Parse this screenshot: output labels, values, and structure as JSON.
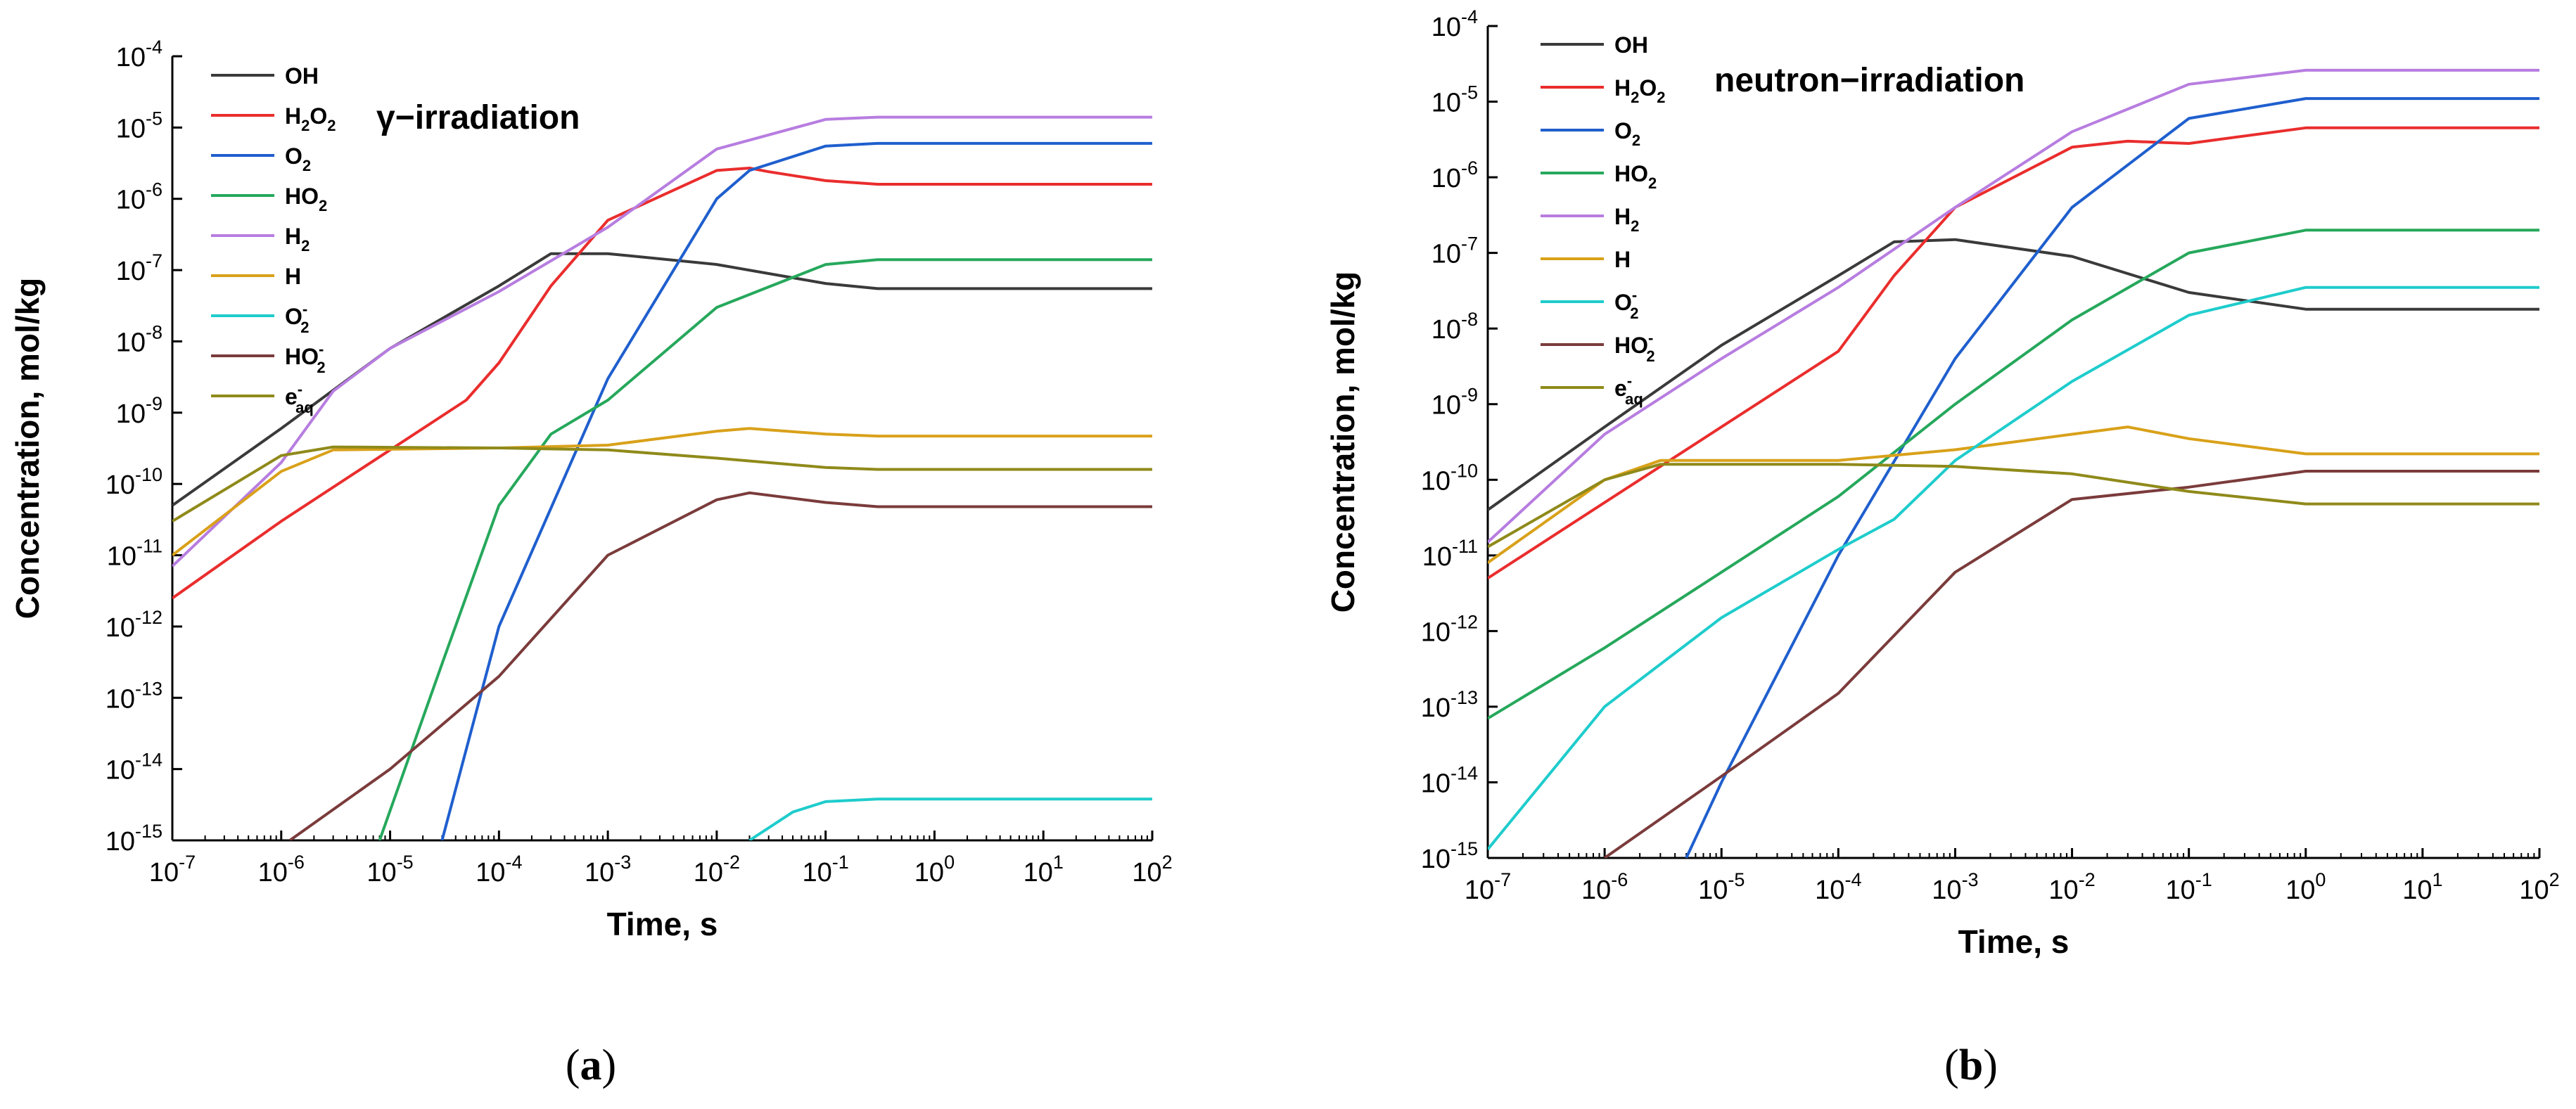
{
  "colors": {
    "OH": "#3a3a3a",
    "H2O2": "#ea2d2d",
    "O2": "#1f5fce",
    "HO2": "#26a85c",
    "H2": "#b77de0",
    "H": "#d9a11a",
    "O2minus": "#1fcccc",
    "HO2minus": "#7b3b3b",
    "eaq": "#8f8a1a"
  },
  "legend_labels": [
    {
      "key": "OH",
      "base": "OH",
      "sub": "",
      "sup": ""
    },
    {
      "key": "H2O2",
      "base": "H",
      "sub": "2",
      "base2": "O",
      "sub2": "2",
      "sup": ""
    },
    {
      "key": "O2",
      "base": "O",
      "sub": "2",
      "sup": ""
    },
    {
      "key": "HO2",
      "base": "HO",
      "sub": "2",
      "sup": ""
    },
    {
      "key": "H2",
      "base": "H",
      "sub": "2",
      "sup": ""
    },
    {
      "key": "H",
      "base": "H",
      "sub": "",
      "sup": ""
    },
    {
      "key": "O2minus",
      "base": "O",
      "sub": "2",
      "sup": "-"
    },
    {
      "key": "HO2minus",
      "base": "HO",
      "sub": "2",
      "sup": "-"
    },
    {
      "key": "eaq",
      "base": "e",
      "sub": "aq",
      "sup": "-"
    }
  ],
  "chart_data": [
    {
      "type": "line",
      "panel_caption": "(a)",
      "annotation": "γ−irradiation",
      "xlabel": "Time, s",
      "ylabel": "Concentration, mol/kg",
      "x_scale": "log",
      "y_scale": "log",
      "xlim": [
        1e-07,
        100
      ],
      "ylim": [
        1e-15,
        0.0001
      ],
      "x_tick_exponents": [
        -7,
        -6,
        -5,
        -4,
        -3,
        -2,
        -1,
        0,
        1,
        2
      ],
      "y_tick_exponents": [
        -4,
        -5,
        -6,
        -7,
        -8,
        -9,
        -10,
        -11,
        -12,
        -13,
        -14,
        -15
      ],
      "tick_base": "10",
      "legend_position": "top-left",
      "grid": false,
      "series": [
        {
          "key": "OH",
          "x": [
            1e-07,
            1e-06,
            1e-05,
            0.0001,
            0.0003,
            0.001,
            0.01,
            0.1,
            0.3,
            100
          ],
          "y": [
            5e-11,
            6e-10,
            8e-09,
            6e-08,
            1.7e-07,
            1.7e-07,
            1.2e-07,
            6.5e-08,
            5.5e-08,
            5.5e-08
          ]
        },
        {
          "key": "H2O2",
          "x": [
            1e-07,
            1e-06,
            1e-05,
            5e-05,
            0.0001,
            0.0003,
            0.001,
            0.01,
            0.02,
            0.03,
            0.1,
            0.3,
            100
          ],
          "y": [
            2.5e-12,
            3e-11,
            3e-10,
            1.5e-09,
            5e-09,
            6e-08,
            5e-07,
            2.5e-06,
            2.7e-06,
            2.4e-06,
            1.8e-06,
            1.6e-06,
            1.6e-06
          ]
        },
        {
          "key": "O2",
          "x": [
            3e-05,
            0.0001,
            0.001,
            0.01,
            0.02,
            0.1,
            0.3,
            100
          ],
          "y": [
            1e-15,
            1e-12,
            3e-09,
            1e-06,
            2.5e-06,
            5.5e-06,
            6e-06,
            6e-06
          ]
        },
        {
          "key": "HO2",
          "x": [
            8e-06,
            3e-05,
            0.0001,
            0.0003,
            0.001,
            0.01,
            0.1,
            0.3,
            100
          ],
          "y": [
            1e-15,
            3e-13,
            5e-11,
            5e-10,
            1.5e-09,
            3e-08,
            1.2e-07,
            1.4e-07,
            1.4e-07
          ]
        },
        {
          "key": "H2",
          "x": [
            1e-07,
            1e-06,
            3e-06,
            1e-05,
            0.0001,
            0.001,
            0.01,
            0.1,
            0.3,
            100
          ],
          "y": [
            7e-12,
            2e-10,
            2e-09,
            8e-09,
            5e-08,
            4e-07,
            5e-06,
            1.3e-05,
            1.4e-05,
            1.4e-05
          ]
        },
        {
          "key": "H",
          "x": [
            1e-07,
            1e-06,
            3e-06,
            0.0001,
            0.001,
            0.01,
            0.02,
            0.1,
            0.3,
            100
          ],
          "y": [
            1e-11,
            1.5e-10,
            3e-10,
            3.2e-10,
            3.5e-10,
            5.5e-10,
            6e-10,
            5e-10,
            4.7e-10,
            4.7e-10
          ]
        },
        {
          "key": "O2minus",
          "x": [
            0.02,
            0.05,
            0.1,
            0.3,
            100
          ],
          "y": [
            1e-15,
            2.5e-15,
            3.5e-15,
            3.8e-15,
            3.8e-15
          ]
        },
        {
          "key": "HO2minus",
          "x": [
            1.2e-06,
            1e-05,
            0.0001,
            0.001,
            0.01,
            0.02,
            0.1,
            0.3,
            100
          ],
          "y": [
            1e-15,
            1e-14,
            2e-13,
            1e-11,
            6e-11,
            7.5e-11,
            5.5e-11,
            4.8e-11,
            4.8e-11
          ]
        },
        {
          "key": "eaq",
          "x": [
            1e-07,
            1e-06,
            3e-06,
            0.0001,
            0.001,
            0.01,
            0.1,
            0.3,
            100
          ],
          "y": [
            3e-11,
            2.5e-10,
            3.3e-10,
            3.2e-10,
            3e-10,
            2.3e-10,
            1.7e-10,
            1.6e-10,
            1.6e-10
          ]
        }
      ]
    },
    {
      "type": "line",
      "panel_caption": "(b)",
      "annotation": "neutron−irradiation",
      "xlabel": "Time, s",
      "ylabel": "Concentration, mol/kg",
      "x_scale": "log",
      "y_scale": "log",
      "xlim": [
        1e-07,
        100
      ],
      "ylim": [
        1e-15,
        0.0001
      ],
      "x_tick_exponents": [
        -7,
        -6,
        -5,
        -4,
        -3,
        -2,
        -1,
        0,
        1,
        2
      ],
      "y_tick_exponents": [
        -4,
        -5,
        -6,
        -7,
        -8,
        -9,
        -10,
        -11,
        -12,
        -13,
        -14,
        -15
      ],
      "tick_base": "10",
      "legend_position": "top-left",
      "grid": false,
      "series": [
        {
          "key": "OH",
          "x": [
            1e-07,
            1e-06,
            1e-05,
            0.0001,
            0.0003,
            0.001,
            0.01,
            0.1,
            1,
            100
          ],
          "y": [
            4e-11,
            5e-10,
            6e-09,
            5e-08,
            1.4e-07,
            1.5e-07,
            9e-08,
            3e-08,
            1.8e-08,
            1.8e-08
          ]
        },
        {
          "key": "H2O2",
          "x": [
            1e-07,
            1e-06,
            1e-05,
            0.0001,
            0.0003,
            0.001,
            0.01,
            0.03,
            0.1,
            1,
            100
          ],
          "y": [
            5e-12,
            5e-11,
            5e-10,
            5e-09,
            5e-08,
            4e-07,
            2.5e-06,
            3e-06,
            2.8e-06,
            4.5e-06,
            4.5e-06
          ]
        },
        {
          "key": "O2",
          "x": [
            5e-06,
            1e-05,
            0.0001,
            0.001,
            0.01,
            0.1,
            1,
            100
          ],
          "y": [
            1e-15,
            1e-14,
            1e-11,
            4e-09,
            4e-07,
            6e-06,
            1.1e-05,
            1.1e-05
          ]
        },
        {
          "key": "HO2",
          "x": [
            1e-07,
            1e-06,
            1e-05,
            0.0001,
            0.001,
            0.01,
            0.1,
            1,
            100
          ],
          "y": [
            7e-14,
            6e-13,
            6e-12,
            6e-11,
            1e-09,
            1.3e-08,
            1e-07,
            2e-07,
            2e-07
          ]
        },
        {
          "key": "H2",
          "x": [
            1e-07,
            1e-06,
            1e-05,
            0.0001,
            0.001,
            0.01,
            0.1,
            1,
            100
          ],
          "y": [
            1.5e-11,
            4e-10,
            4e-09,
            3.5e-08,
            4e-07,
            4e-06,
            1.7e-05,
            2.6e-05,
            2.6e-05
          ]
        },
        {
          "key": "H",
          "x": [
            1e-07,
            1e-06,
            3e-06,
            0.0001,
            0.001,
            0.01,
            0.03,
            0.1,
            1,
            100
          ],
          "y": [
            8e-12,
            1e-10,
            1.8e-10,
            1.8e-10,
            2.5e-10,
            4e-10,
            5e-10,
            3.5e-10,
            2.2e-10,
            2.2e-10
          ]
        },
        {
          "key": "O2minus",
          "x": [
            1e-07,
            1e-06,
            1e-05,
            0.0001,
            0.0003,
            0.001,
            0.01,
            0.1,
            1,
            100
          ],
          "y": [
            1.3e-15,
            1e-13,
            1.5e-12,
            1.2e-11,
            3e-11,
            1.8e-10,
            2e-09,
            1.5e-08,
            3.5e-08,
            3.5e-08
          ]
        },
        {
          "key": "HO2minus",
          "x": [
            1e-06,
            1e-05,
            0.0001,
            0.001,
            0.01,
            0.1,
            1,
            100
          ],
          "y": [
            1e-15,
            1.2e-14,
            1.5e-13,
            6e-12,
            5.5e-11,
            8e-11,
            1.3e-10,
            1.3e-10
          ]
        },
        {
          "key": "eaq",
          "x": [
            1e-07,
            1e-06,
            3e-06,
            0.0001,
            0.001,
            0.01,
            0.1,
            1,
            100
          ],
          "y": [
            1.3e-11,
            1e-10,
            1.6e-10,
            1.6e-10,
            1.5e-10,
            1.2e-10,
            7e-11,
            4.8e-11,
            4.8e-11
          ]
        }
      ]
    }
  ]
}
